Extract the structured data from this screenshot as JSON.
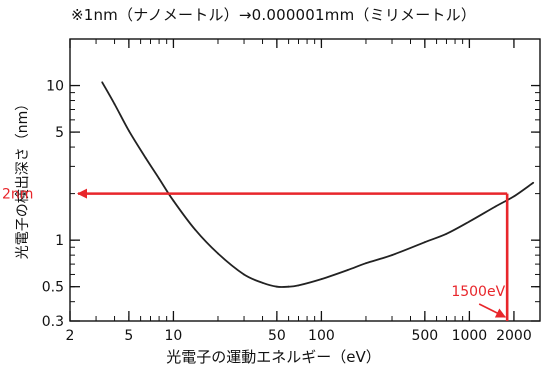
{
  "chart_data": {
    "type": "line",
    "title": "※1nm（ナノメートル）→0.000001mm（ミリメートル）",
    "xlabel": "光電子の運動エネルギー（eV）",
    "ylabel": "光電子の検出深さ（nm）",
    "xscale": "log",
    "yscale": "log",
    "xlim": [
      2,
      3000
    ],
    "ylim": [
      0.3,
      20
    ],
    "grid": false,
    "x_ticks": [
      {
        "value": 2,
        "label": "2"
      },
      {
        "value": 5,
        "label": "5"
      },
      {
        "value": 10,
        "label": "10"
      },
      {
        "value": 50,
        "label": "50"
      },
      {
        "value": 100,
        "label": "100"
      },
      {
        "value": 500,
        "label": "500"
      },
      {
        "value": 1000,
        "label": "1000"
      },
      {
        "value": 2000,
        "label": "2000"
      }
    ],
    "y_ticks": [
      {
        "value": 0.3,
        "label": "0.3"
      },
      {
        "value": 0.5,
        "label": "0.5"
      },
      {
        "value": 1,
        "label": "1"
      },
      {
        "value": 5,
        "label": "5"
      },
      {
        "value": 10,
        "label": "10"
      }
    ],
    "series": [
      {
        "name": "",
        "color": "#222222",
        "x": [
          3.3,
          4.0,
          5.0,
          6.5,
          8.0,
          10,
          14,
          20,
          30,
          40,
          50,
          60,
          70,
          100,
          150,
          200,
          300,
          500,
          700,
          1000,
          1500,
          2000,
          2700
        ],
        "y": [
          10.5,
          7.6,
          5.1,
          3.4,
          2.5,
          1.8,
          1.17,
          0.82,
          0.6,
          0.53,
          0.5,
          0.5,
          0.51,
          0.56,
          0.64,
          0.71,
          0.8,
          0.97,
          1.1,
          1.32,
          1.65,
          1.92,
          2.35
        ]
      }
    ],
    "annotations": [
      {
        "text": "2nm",
        "x": 2,
        "y": 2,
        "color": "#e8262b"
      },
      {
        "text": "1500eV",
        "x": 1800,
        "y": 0.3,
        "color": "#e8262b"
      }
    ],
    "highlight": {
      "x": 1800,
      "y": 2,
      "color": "#e8262b"
    }
  }
}
